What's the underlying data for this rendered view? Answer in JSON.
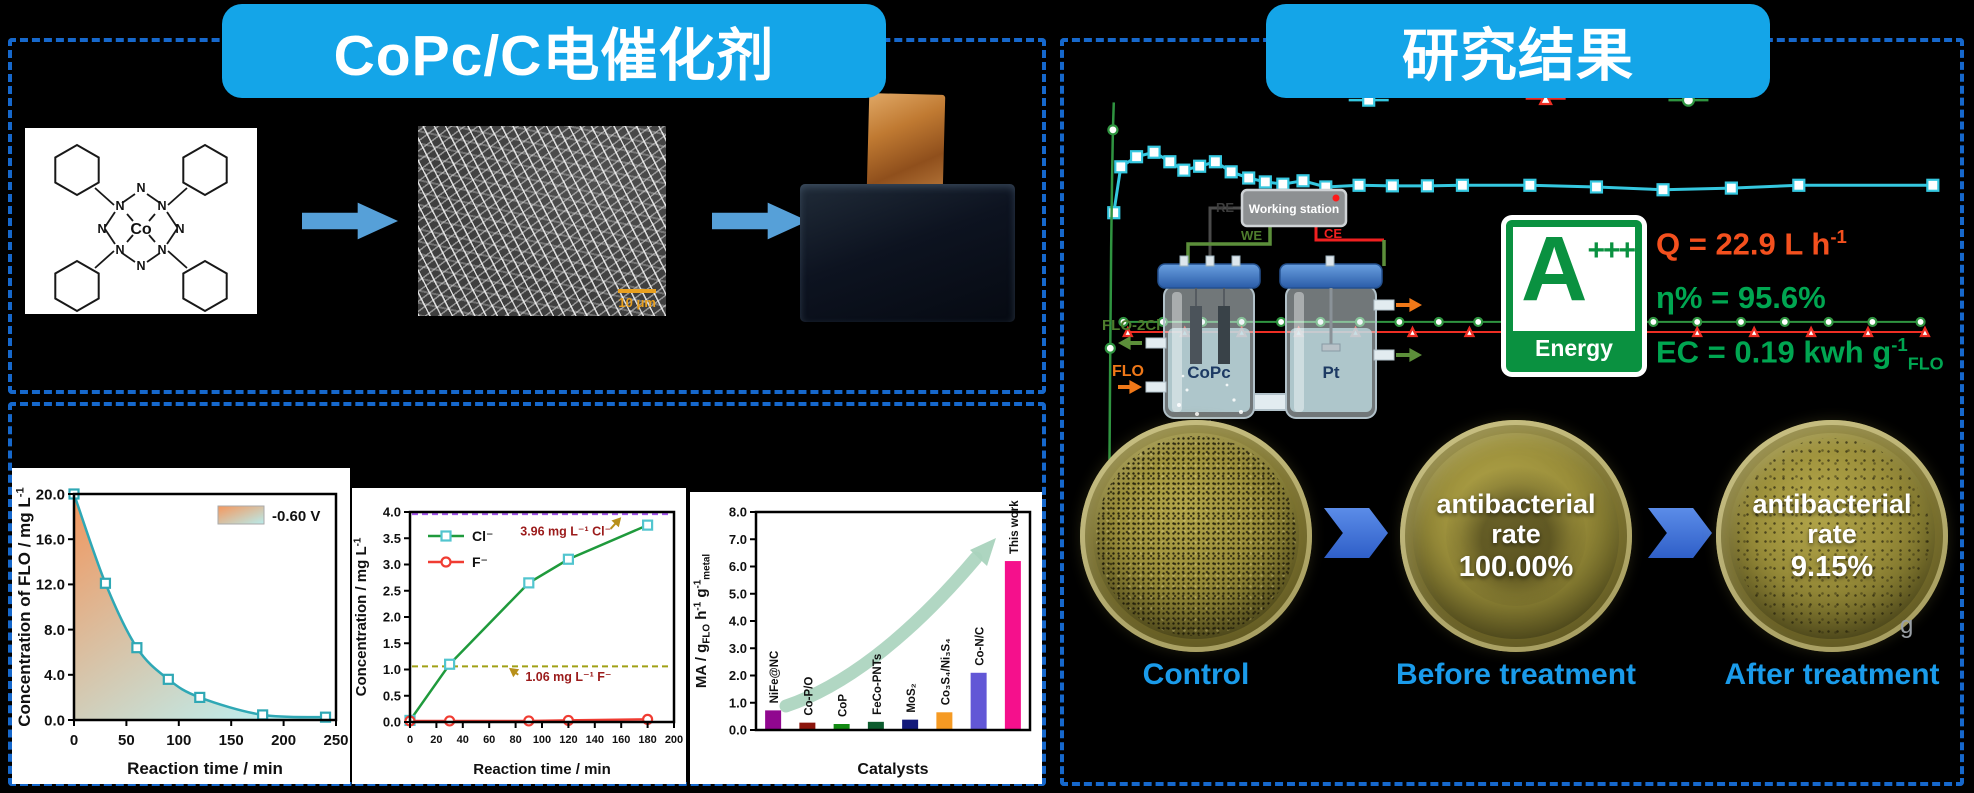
{
  "left_panel": {
    "title": "CoPc/C电催化剂",
    "molecule": {
      "metal": "Co",
      "atom": "N"
    },
    "sem_scale": "10 μm"
  },
  "results_panel": {
    "title": "研究结果",
    "diagram": {
      "working_station": "Working station",
      "re": "RE",
      "we": "WE",
      "ce": "CE",
      "outflow_label": "FLO-2Cl",
      "inflow_label": "FLO",
      "cell_left": "CoPc",
      "cell_right": "Pt"
    },
    "energy_badge": {
      "grade": "A",
      "plus": "+++",
      "caption": "Energy"
    },
    "metrics": {
      "q": {
        "prefix": "Q = 22.9 L h",
        "sup": "-1",
        "color": "#f4501e"
      },
      "eta": {
        "text": "η% = 95.6%",
        "color": "#00a651"
      },
      "ec": {
        "prefix": "EC = 0.19 kwh g",
        "sup": "-1",
        "sub": "FLO",
        "color": "#00a651"
      }
    },
    "dishes": [
      {
        "label": "Control"
      },
      {
        "label": "Before treatment",
        "overlay_line1": "antibacterial",
        "overlay_line2": "rate",
        "overlay_value": "100.00%"
      },
      {
        "label": "After treatment",
        "overlay_line1": "antibacterial",
        "overlay_line2": "rate",
        "overlay_value": "9.15%"
      }
    ],
    "corner_mark": "g"
  },
  "colors": {
    "title_bg": "#14a5e8",
    "panel_border": "#1668cc",
    "process_arrow": "#56a0d8",
    "dish_label": "#1a9bea",
    "energy_green": "#0a9140"
  },
  "chart_data": [
    {
      "type": "area",
      "xlabel": "Reaction time / min",
      "ylabel_parts": [
        {
          "t": "Concentration of FLO / mg L"
        },
        {
          "t": "-1",
          "s": "sup"
        }
      ],
      "xlim": [
        0,
        250
      ],
      "ylim": [
        0,
        20
      ],
      "xticks": [
        0,
        50,
        100,
        150,
        200,
        250
      ],
      "yticks": [
        "0.0",
        "4.0",
        "8.0",
        "12.0",
        "16.0",
        "20.0"
      ],
      "legend": {
        "label": "-0.60 V",
        "gradient": [
          "#f5975d",
          "#b8ecec"
        ]
      },
      "area_gradient": [
        "#f08a4b",
        "#b8ecec"
      ],
      "series": [
        {
          "name": "FLO",
          "color": "#2fa8b5",
          "marker": "square",
          "x": [
            0,
            30,
            60,
            90,
            120,
            180,
            240
          ],
          "y": [
            20.0,
            12.1,
            6.4,
            3.6,
            2.0,
            0.45,
            0.25
          ]
        }
      ]
    },
    {
      "type": "line",
      "xlabel": "Reaction time / min",
      "ylabel_parts": [
        {
          "t": "Concentration / mg L"
        },
        {
          "t": "-1",
          "s": "sup"
        }
      ],
      "xlim": [
        0,
        200
      ],
      "ylim": [
        0,
        4
      ],
      "xticks": [
        0,
        20,
        40,
        60,
        80,
        100,
        120,
        140,
        160,
        180,
        200
      ],
      "yticks": [
        "0.0",
        "0.5",
        "1.0",
        "1.5",
        "2.0",
        "2.5",
        "3.0",
        "3.5",
        "4.0"
      ],
      "series": [
        {
          "name": "Cl⁻",
          "color": "#1f9a3c",
          "marker": "square",
          "marker_color": "#52c5cf",
          "x": [
            0,
            30,
            90,
            120,
            180
          ],
          "y": [
            0.03,
            1.1,
            2.65,
            3.1,
            3.75
          ]
        },
        {
          "name": "F⁻",
          "color": "#f03c32",
          "marker": "circle",
          "marker_color": "#f03c32",
          "x": [
            0,
            30,
            90,
            120,
            180
          ],
          "y": [
            0.02,
            0.02,
            0.02,
            0.03,
            0.05
          ]
        }
      ],
      "hlines": [
        {
          "y": 3.96,
          "color": "#a352f0",
          "label": "3.96 mg L⁻¹ Cl⁻",
          "label_color": "#9b1b1b",
          "lx": 118,
          "ly": 3.55,
          "arrow_from": [
            152,
            3.68
          ],
          "arrow_to": [
            160,
            3.9
          ]
        },
        {
          "y": 1.06,
          "color": "#a0a016",
          "label": "1.06 mg L⁻¹ F⁻",
          "label_color": "#9b1b1b",
          "lx": 120,
          "ly": 0.78,
          "arrow_from": [
            82,
            0.9
          ],
          "arrow_to": [
            75,
            1.03
          ]
        }
      ]
    },
    {
      "type": "bar",
      "xlabel": "Catalysts",
      "ylabel_parts": [
        {
          "t": "MA / g"
        },
        {
          "t": "FLO",
          "s": "sub"
        },
        {
          "t": " h"
        },
        {
          "t": "-1",
          "s": "sup"
        },
        {
          "t": " g"
        },
        {
          "t": "-1",
          "s": "sup"
        },
        {
          "t": "metal",
          "s": "sub"
        }
      ],
      "ylim": [
        0,
        8
      ],
      "yticks": [
        "0.0",
        "1.0",
        "2.0",
        "3.0",
        "4.0",
        "5.0",
        "6.0",
        "7.0",
        "8.0"
      ],
      "categories": [
        "NiFe@NC",
        "Co-P/O",
        "CoP",
        "FeCo-PNTs",
        "MoS₂",
        "Co₃S₄/Ni₃S₄",
        "Co-N/C",
        "This work"
      ],
      "values": [
        0.72,
        0.27,
        0.22,
        0.3,
        0.38,
        0.65,
        2.1,
        6.2
      ],
      "colors": [
        "#90078f",
        "#8c150c",
        "#128a12",
        "#0d5c2e",
        "#131a7a",
        "#f59a23",
        "#6257d6",
        "#f5108c"
      ],
      "trend_arrow_color": "#a9d3bd"
    },
    {
      "type": "line",
      "note": "stability/performance plot, axes unlabeled in image; normalized 0-1 coordinates",
      "series": [
        {
          "name": "cyan-squares",
          "color": "#35c8e0",
          "marker": "square",
          "marker_size": 11,
          "width": 3,
          "points": [
            [
              0.034,
              0.237
            ],
            [
              0.042,
              0.155
            ],
            [
              0.06,
              0.137
            ],
            [
              0.08,
              0.129
            ],
            [
              0.098,
              0.146
            ],
            [
              0.114,
              0.161
            ],
            [
              0.132,
              0.154
            ],
            [
              0.15,
              0.146
            ],
            [
              0.168,
              0.164
            ],
            [
              0.188,
              0.175
            ],
            [
              0.207,
              0.182
            ],
            [
              0.227,
              0.186
            ],
            [
              0.25,
              0.18
            ],
            [
              0.276,
              0.191
            ],
            [
              0.314,
              0.188
            ],
            [
              0.352,
              0.189
            ],
            [
              0.392,
              0.189
            ],
            [
              0.432,
              0.188
            ],
            [
              0.509,
              0.188
            ],
            [
              0.585,
              0.191
            ],
            [
              0.661,
              0.196
            ],
            [
              0.739,
              0.193
            ],
            [
              0.816,
              0.188
            ],
            [
              0.969,
              0.188
            ]
          ]
        },
        {
          "name": "green-rise",
          "color": "#2f9440",
          "marker": "circle",
          "marker_size": 9,
          "width": 2.5,
          "marker_idx": [
            0,
            2,
            5
          ],
          "points": [
            [
              0.028,
              0.93
            ],
            [
              0.029,
              0.7
            ],
            [
              0.03,
              0.479
            ],
            [
              0.031,
              0.3
            ],
            [
              0.032,
              0.18
            ],
            [
              0.033,
              0.089
            ],
            [
              0.034,
              0.04
            ]
          ]
        },
        {
          "name": "green-baseline",
          "color": "#2f9440",
          "marker": "circle",
          "marker_size": 8,
          "width": 2,
          "points": [
            [
              0.045,
              0.432
            ],
            [
              0.09,
              0.432
            ],
            [
              0.135,
              0.432
            ],
            [
              0.18,
              0.432
            ],
            [
              0.225,
              0.432
            ],
            [
              0.27,
              0.432
            ],
            [
              0.315,
              0.432
            ],
            [
              0.36,
              0.432
            ],
            [
              0.405,
              0.432
            ],
            [
              0.45,
              0.432
            ],
            [
              0.5,
              0.432
            ],
            [
              0.55,
              0.432
            ],
            [
              0.6,
              0.432
            ],
            [
              0.65,
              0.432
            ],
            [
              0.7,
              0.432
            ],
            [
              0.75,
              0.432
            ],
            [
              0.8,
              0.432
            ],
            [
              0.85,
              0.432
            ],
            [
              0.9,
              0.432
            ],
            [
              0.955,
              0.432
            ]
          ]
        },
        {
          "name": "red-baseline",
          "color": "#ee2e24",
          "marker": "triangle",
          "marker_size": 8,
          "width": 2,
          "points": [
            [
              0.05,
              0.45
            ],
            [
              0.115,
              0.45
            ],
            [
              0.18,
              0.45
            ],
            [
              0.245,
              0.45
            ],
            [
              0.31,
              0.45
            ],
            [
              0.375,
              0.45
            ],
            [
              0.44,
              0.45
            ],
            [
              0.505,
              0.45
            ],
            [
              0.57,
              0.45
            ],
            [
              0.635,
              0.45
            ],
            [
              0.7,
              0.45
            ],
            [
              0.765,
              0.45
            ],
            [
              0.83,
              0.45
            ],
            [
              0.895,
              0.45
            ],
            [
              0.96,
              0.45
            ]
          ]
        }
      ],
      "legend_markers": [
        {
          "marker": "square",
          "color": "#35c8e0",
          "x": 0.325,
          "y": 0.036
        },
        {
          "marker": "triangle",
          "color": "#ee2e24",
          "x": 0.527,
          "y": 0.033
        },
        {
          "marker": "circle",
          "color": "#2f9440",
          "x": 0.69,
          "y": 0.036
        }
      ]
    }
  ]
}
